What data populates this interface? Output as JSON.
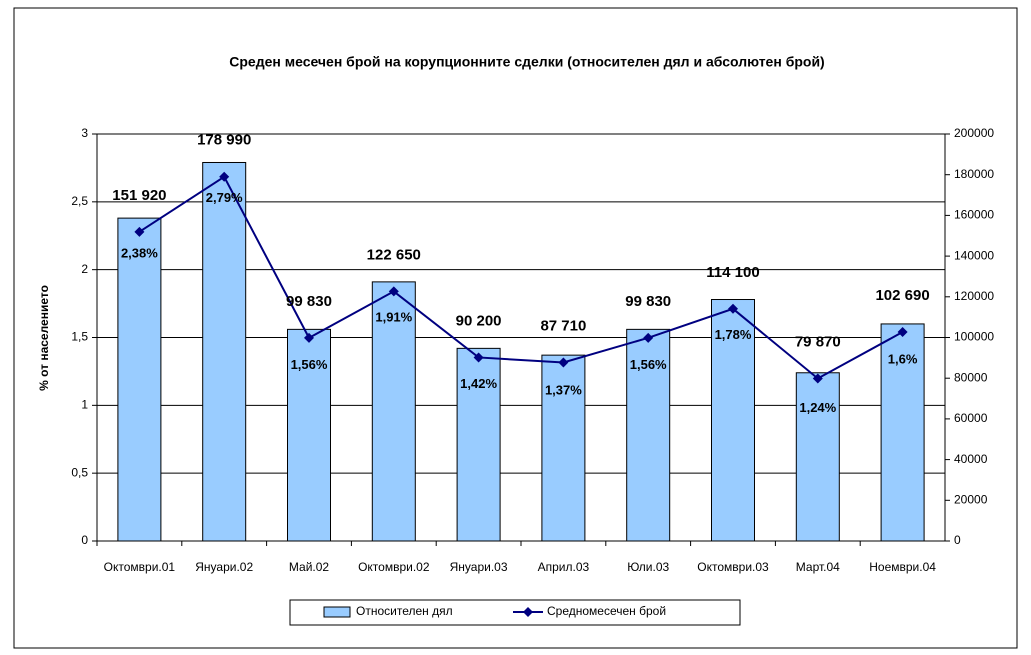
{
  "chart_data": {
    "type": "combo",
    "title": "Среден месечен брой на корупционните сделки (относителен дял и абсолютен брой)",
    "ylabel": "% от населението",
    "categories": [
      "Октомври.01",
      "Януари.02",
      "Май.02",
      "Октомври.02",
      "Януари.03",
      "Април.03",
      "Юли.03",
      "Октомври.03",
      "Март.04",
      "Ноември.04"
    ],
    "series": [
      {
        "name": "Относителен дял",
        "type": "bar",
        "color": "#99ccff",
        "values": [
          2.38,
          2.79,
          1.56,
          1.91,
          1.42,
          1.37,
          1.56,
          1.78,
          1.24,
          1.6
        ],
        "value_labels": [
          "2,38%",
          "2,79%",
          "1,56%",
          "1,91%",
          "1,42%",
          "1,37%",
          "1,56%",
          "1,78%",
          "1,24%",
          "1,6%"
        ]
      },
      {
        "name": "Средномесечен брой",
        "type": "line",
        "color": "#000080",
        "axis": "y2",
        "values": [
          151920,
          178990,
          99830,
          122650,
          90200,
          87710,
          99830,
          114100,
          79870,
          102690
        ],
        "value_labels": [
          "151 920",
          "178 990",
          "99 830",
          "122 650",
          "90 200",
          "87 710",
          "99 830",
          "114 100",
          "79 870",
          "102 690"
        ]
      }
    ],
    "ylim": [
      0,
      3
    ],
    "yticks": [
      0,
      {
        "value": 0.5,
        "label": "0,5"
      },
      1,
      {
        "value": 1.5,
        "label": "1,5"
      },
      2,
      {
        "value": 2.5,
        "label": "2,5"
      },
      3
    ],
    "y2lim": [
      0,
      200000
    ],
    "y2ticks": [
      0,
      20000,
      40000,
      60000,
      80000,
      100000,
      120000,
      140000,
      160000,
      180000,
      200000
    ],
    "grid": true,
    "legend": "bottom"
  }
}
